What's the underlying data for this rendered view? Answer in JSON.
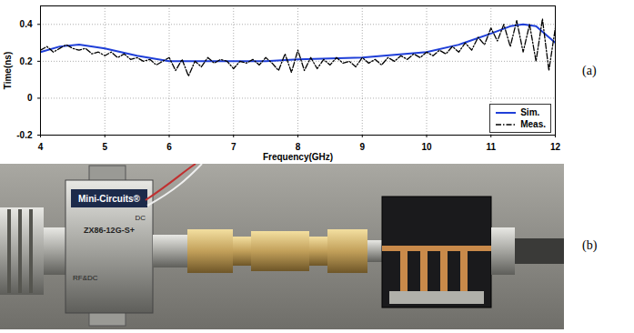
{
  "chart_data": {
    "type": "line",
    "x_label": "Frequency(GHz)",
    "y_label": "Time(ns)",
    "xlim": [
      4,
      12
    ],
    "xticks": [
      4,
      5,
      6,
      7,
      8,
      9,
      10,
      11,
      12
    ],
    "ylim": [
      -0.2,
      0.5
    ],
    "yticks": [
      -0.2,
      0,
      0.2,
      0.4
    ],
    "grid": true,
    "legend": "lower right",
    "series": [
      {
        "name": "Sim.",
        "color": "#1f3fd8",
        "line_style": "solid",
        "x": [
          4,
          4.3,
          4.6,
          5,
          5.5,
          6,
          6.5,
          7,
          7.5,
          8,
          8.5,
          9,
          9.5,
          10,
          10.5,
          11,
          11.3,
          11.5,
          11.7,
          12
        ],
        "values": [
          0.25,
          0.28,
          0.29,
          0.27,
          0.23,
          0.2,
          0.2,
          0.2,
          0.2,
          0.21,
          0.215,
          0.22,
          0.235,
          0.25,
          0.29,
          0.35,
          0.39,
          0.4,
          0.39,
          0.3
        ]
      },
      {
        "name": "Meas.",
        "color": "#000000",
        "line_style": "dashdot",
        "x": [
          4.0,
          4.1,
          4.2,
          4.3,
          4.4,
          4.5,
          4.6,
          4.7,
          4.8,
          4.9,
          5.0,
          5.1,
          5.2,
          5.3,
          5.4,
          5.5,
          5.6,
          5.7,
          5.8,
          5.9,
          6.0,
          6.1,
          6.2,
          6.3,
          6.4,
          6.5,
          6.6,
          6.7,
          6.8,
          6.9,
          7.0,
          7.1,
          7.2,
          7.3,
          7.4,
          7.5,
          7.6,
          7.7,
          7.8,
          7.9,
          8.0,
          8.1,
          8.2,
          8.3,
          8.4,
          8.5,
          8.6,
          8.7,
          8.8,
          8.9,
          9.0,
          9.1,
          9.2,
          9.3,
          9.4,
          9.5,
          9.6,
          9.7,
          9.8,
          9.9,
          10.0,
          10.1,
          10.2,
          10.3,
          10.4,
          10.5,
          10.6,
          10.7,
          10.8,
          10.9,
          11.0,
          11.1,
          11.2,
          11.3,
          11.4,
          11.5,
          11.6,
          11.7,
          11.8,
          11.9,
          12.0
        ],
        "values": [
          0.26,
          0.28,
          0.25,
          0.27,
          0.29,
          0.27,
          0.26,
          0.27,
          0.24,
          0.25,
          0.23,
          0.25,
          0.22,
          0.24,
          0.21,
          0.22,
          0.2,
          0.21,
          0.18,
          0.2,
          0.22,
          0.15,
          0.21,
          0.12,
          0.2,
          0.17,
          0.22,
          0.19,
          0.21,
          0.2,
          0.16,
          0.2,
          0.19,
          0.21,
          0.18,
          0.22,
          0.19,
          0.15,
          0.24,
          0.14,
          0.26,
          0.15,
          0.22,
          0.16,
          0.21,
          0.18,
          0.22,
          0.19,
          0.2,
          0.17,
          0.22,
          0.19,
          0.21,
          0.18,
          0.22,
          0.2,
          0.23,
          0.21,
          0.24,
          0.22,
          0.25,
          0.23,
          0.26,
          0.24,
          0.28,
          0.25,
          0.3,
          0.26,
          0.33,
          0.29,
          0.38,
          0.31,
          0.4,
          0.28,
          0.42,
          0.25,
          0.4,
          0.2,
          0.43,
          0.15,
          0.38
        ]
      }
    ]
  },
  "panel_labels": [
    "(a)",
    "(b)"
  ],
  "photo": {
    "box_brand": "Mini-Circuits®",
    "box_model": "ZX86-12G-S+",
    "box_port_dc": "DC",
    "box_port_rf": "RF&DC"
  }
}
